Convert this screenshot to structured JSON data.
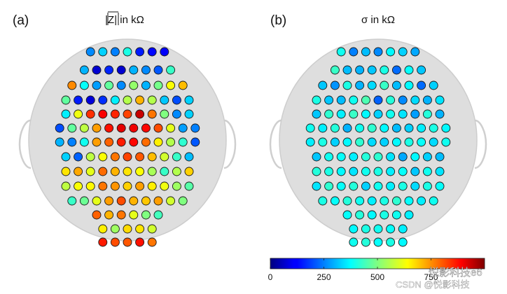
{
  "figure": {
    "colors": {
      "background": "#ffffff",
      "head_fill": "#dddddd",
      "head_stroke": "#c9c9c9",
      "electrode_stroke": "#1a1a1a"
    }
  },
  "watermark": {
    "line1": "悦影科技e6",
    "line2": "CSDN @悦影科技"
  },
  "chart_data": [
    {
      "type": "heatmap",
      "panel": "(a)",
      "title": "|Z| in kΩ",
      "description_units": "kΩ",
      "rows": [
        [
          260,
          330,
          250,
          400,
          150,
          130,
          120
        ],
        [
          300,
          80,
          160,
          80,
          300,
          260,
          210,
          430
        ],
        [
          740,
          380,
          280,
          470,
          260,
          520,
          300,
          490,
          620,
          690
        ],
        [
          470,
          150,
          90,
          170,
          360,
          550,
          700,
          550,
          320,
          200,
          330
        ],
        [
          360,
          610,
          830,
          880,
          840,
          810,
          930,
          760,
          500,
          260,
          330
        ],
        [
          200,
          470,
          560,
          720,
          860,
          900,
          890,
          870,
          800,
          600,
          280,
          250
        ],
        [
          300,
          250,
          390,
          720,
          780,
          850,
          870,
          770,
          640,
          550,
          420,
          210
        ],
        [
          330,
          220,
          560,
          620,
          760,
          810,
          790,
          690,
          580,
          430,
          310
        ],
        [
          650,
          710,
          600,
          770,
          700,
          650,
          620,
          540,
          430,
          550,
          670
        ],
        [
          560,
          620,
          630,
          760,
          730,
          670,
          720,
          640,
          610,
          530,
          460
        ],
        [
          430,
          480,
          600,
          720,
          800,
          700,
          680,
          720,
          580,
          500
        ],
        [
          780,
          700,
          760,
          600,
          500,
          440
        ],
        [
          640,
          530,
          660,
          650,
          580
        ],
        [
          850,
          800,
          790,
          860,
          760
        ]
      ]
    },
    {
      "type": "heatmap",
      "panel": "(b)",
      "title": "σ in kΩ",
      "description_units": "kΩ",
      "rows": [
        [
          390,
          250,
          310,
          260,
          370,
          330,
          290
        ],
        [
          430,
          310,
          300,
          320,
          400,
          230,
          380,
          320
        ],
        [
          320,
          270,
          400,
          300,
          340,
          430,
          310,
          370,
          230,
          330
        ],
        [
          400,
          320,
          310,
          390,
          450,
          220,
          410,
          260,
          340,
          300,
          350
        ],
        [
          320,
          420,
          360,
          430,
          370,
          330,
          390,
          350,
          280,
          410,
          300
        ],
        [
          390,
          360,
          410,
          300,
          390,
          420,
          370,
          310,
          330,
          360,
          400,
          370
        ],
        [
          360,
          400,
          330,
          370,
          420,
          340,
          330,
          370,
          400,
          380,
          340,
          390
        ],
        [
          320,
          390,
          380,
          360,
          410,
          420,
          350,
          290,
          370,
          330,
          310
        ],
        [
          410,
          400,
          370,
          350,
          390,
          400,
          360,
          380,
          320,
          390,
          350
        ],
        [
          350,
          420,
          380,
          410,
          330,
          390,
          360,
          400,
          340,
          400,
          380
        ],
        [
          400,
          380,
          410,
          390,
          360,
          400,
          420,
          380,
          360,
          390
        ],
        [
          380,
          410,
          370,
          400,
          390,
          360
        ],
        [
          370,
          400,
          390,
          380,
          360
        ],
        [
          390,
          410,
          380,
          400,
          370
        ]
      ],
      "colorbar": {
        "min": 0,
        "max": 1000,
        "ticks": [
          "0",
          "250",
          "500",
          "750"
        ],
        "tick_values": [
          0,
          250,
          500,
          750
        ],
        "colormap": "jet",
        "orientation": "horizontal",
        "placement": "bottom-right"
      }
    }
  ]
}
